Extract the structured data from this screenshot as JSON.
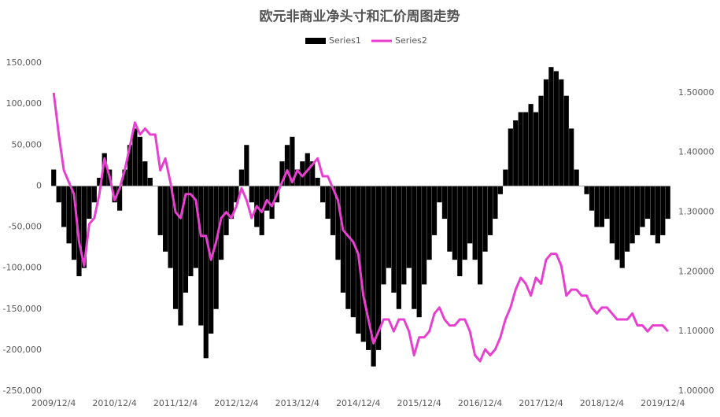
{
  "chart_data": {
    "type": "bar-line",
    "title": "欧元非商业净头寸和汇价周图走势",
    "categories": [
      "2009/12/4",
      null,
      null,
      null,
      null,
      null,
      null,
      null,
      null,
      null,
      null,
      null,
      "2010/12/4",
      null,
      null,
      null,
      null,
      null,
      null,
      null,
      null,
      null,
      null,
      null,
      "2011/12/4",
      null,
      null,
      null,
      null,
      null,
      null,
      null,
      null,
      null,
      null,
      null,
      "2012/12/4",
      null,
      null,
      null,
      null,
      null,
      null,
      null,
      null,
      null,
      null,
      null,
      "2013/12/4",
      null,
      null,
      null,
      null,
      null,
      null,
      null,
      null,
      null,
      null,
      null,
      "2014/12/4",
      null,
      null,
      null,
      null,
      null,
      null,
      null,
      null,
      null,
      null,
      null,
      "2015/12/4",
      null,
      null,
      null,
      null,
      null,
      null,
      null,
      null,
      null,
      null,
      null,
      "2016/12/4",
      null,
      null,
      null,
      null,
      null,
      null,
      null,
      null,
      null,
      null,
      null,
      "2017/12/4",
      null,
      null,
      null,
      null,
      null,
      null,
      null,
      null,
      null,
      null,
      null,
      "2018/12/4",
      null,
      null,
      null,
      null,
      null,
      null,
      null,
      null,
      null,
      null,
      null,
      "2019/12/4",
      null
    ],
    "series": [
      {
        "name": "Series1",
        "color": "#000000",
        "values": [
          20000,
          -20000,
          -50000,
          -70000,
          -90000,
          -110000,
          -100000,
          -40000,
          -20000,
          10000,
          40000,
          20000,
          -20000,
          -30000,
          20000,
          50000,
          70000,
          60000,
          30000,
          10000,
          0,
          -60000,
          -80000,
          -100000,
          -150000,
          -170000,
          -130000,
          -110000,
          -100000,
          -170000,
          -210000,
          -180000,
          -150000,
          -90000,
          -60000,
          -40000,
          -20000,
          20000,
          50000,
          -20000,
          -50000,
          -60000,
          -30000,
          -40000,
          -20000,
          30000,
          50000,
          60000,
          20000,
          30000,
          40000,
          30000,
          10000,
          -20000,
          -40000,
          -60000,
          -90000,
          -130000,
          -150000,
          -160000,
          -180000,
          -190000,
          -200000,
          -220000,
          -200000,
          -120000,
          -100000,
          -130000,
          -150000,
          -120000,
          -100000,
          -150000,
          -160000,
          -120000,
          -90000,
          -60000,
          -20000,
          -40000,
          -80000,
          -90000,
          -110000,
          -90000,
          -70000,
          -90000,
          -120000,
          -80000,
          -60000,
          -40000,
          -10000,
          20000,
          70000,
          80000,
          90000,
          90000,
          100000,
          90000,
          110000,
          130000,
          145000,
          140000,
          130000,
          110000,
          70000,
          20000,
          0,
          -10000,
          -30000,
          -50000,
          -50000,
          -40000,
          -70000,
          -90000,
          -100000,
          -80000,
          -70000,
          -60000,
          -50000,
          -40000,
          -60000,
          -70000,
          -60000,
          -40000
        ]
      },
      {
        "name": "Series2",
        "color": "#e83fd0",
        "axis": "y2",
        "values": [
          1.5,
          1.43,
          1.37,
          1.35,
          1.33,
          1.25,
          1.21,
          1.28,
          1.29,
          1.33,
          1.39,
          1.36,
          1.32,
          1.34,
          1.37,
          1.41,
          1.45,
          1.43,
          1.44,
          1.43,
          1.43,
          1.37,
          1.39,
          1.35,
          1.3,
          1.29,
          1.33,
          1.33,
          1.32,
          1.26,
          1.26,
          1.22,
          1.25,
          1.29,
          1.3,
          1.29,
          1.31,
          1.34,
          1.32,
          1.29,
          1.31,
          1.3,
          1.32,
          1.31,
          1.33,
          1.35,
          1.37,
          1.35,
          1.37,
          1.36,
          1.37,
          1.38,
          1.39,
          1.36,
          1.36,
          1.34,
          1.32,
          1.27,
          1.26,
          1.25,
          1.23,
          1.16,
          1.12,
          1.08,
          1.1,
          1.12,
          1.12,
          1.1,
          1.12,
          1.12,
          1.1,
          1.06,
          1.09,
          1.09,
          1.1,
          1.13,
          1.14,
          1.12,
          1.11,
          1.11,
          1.12,
          1.12,
          1.1,
          1.06,
          1.05,
          1.07,
          1.06,
          1.07,
          1.09,
          1.12,
          1.14,
          1.17,
          1.19,
          1.18,
          1.16,
          1.19,
          1.18,
          1.22,
          1.23,
          1.23,
          1.21,
          1.16,
          1.17,
          1.17,
          1.16,
          1.16,
          1.14,
          1.13,
          1.14,
          1.14,
          1.13,
          1.12,
          1.12,
          1.12,
          1.13,
          1.11,
          1.11,
          1.1,
          1.11,
          1.11,
          1.11,
          1.1
        ]
      }
    ],
    "ylim": [
      -250000,
      150000
    ],
    "yticks": [
      {
        "value": -250000,
        "label": "-250,000"
      },
      {
        "value": -200000,
        "label": "-200,000"
      },
      {
        "value": -150000,
        "label": "-150,000"
      },
      {
        "value": -100000,
        "label": "-100,000"
      },
      {
        "value": -50000,
        "label": "-50,000"
      },
      0,
      {
        "value": 50000,
        "label": "50,000"
      },
      {
        "value": 100000,
        "label": "100,000"
      },
      {
        "value": 150000,
        "label": "150,000"
      }
    ],
    "y2lim": [
      1.0,
      1.55
    ],
    "y2ticks": [
      {
        "value": 1.0,
        "label": "1.00000"
      },
      {
        "value": 1.1,
        "label": "1.10000"
      },
      {
        "value": 1.2,
        "label": "1.20000"
      },
      {
        "value": 1.3,
        "label": "1.30000"
      },
      {
        "value": 1.4,
        "label": "1.40000"
      },
      {
        "value": 1.5,
        "label": "1.50000"
      }
    ],
    "legend": "top"
  }
}
